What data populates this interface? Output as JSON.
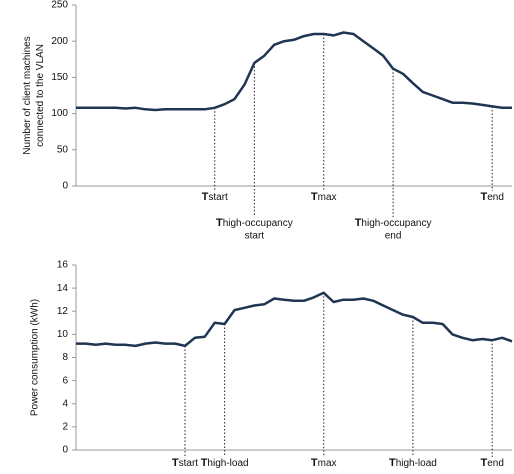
{
  "chart_data": [
    {
      "type": "line",
      "color": "#1f3552",
      "ylabel": [
        "Number of client machines",
        "connected to the VLAN"
      ],
      "ylim": [
        0,
        250
      ],
      "yticks": [
        0,
        50,
        100,
        150,
        200,
        250
      ],
      "values": [
        108,
        108,
        108,
        108,
        108,
        107,
        108,
        106,
        105,
        106,
        106,
        106,
        106,
        106,
        108,
        113,
        120,
        140,
        170,
        180,
        195,
        200,
        202,
        207,
        210,
        210,
        208,
        212,
        210,
        200,
        190,
        180,
        162,
        155,
        142,
        130,
        125,
        120,
        115,
        115,
        114,
        112,
        110,
        108,
        108
      ],
      "annotations": [
        {
          "index": 14,
          "label": [
            "Tstart"
          ]
        },
        {
          "index": 18,
          "label": [
            "Thigh-occupancy",
            "start"
          ]
        },
        {
          "index": 25,
          "label": [
            "Tmax"
          ]
        },
        {
          "index": 32,
          "label": [
            "Thigh-occupancy",
            "end"
          ]
        },
        {
          "index": 42,
          "label": [
            "Tend"
          ]
        }
      ]
    },
    {
      "type": "line",
      "color": "#1f3552",
      "ylabel": [
        "Power consumption (kWh)"
      ],
      "ylim": [
        0,
        16
      ],
      "yticks": [
        0,
        2,
        4,
        6,
        8,
        10,
        12,
        14,
        16
      ],
      "values": [
        9.2,
        9.2,
        9.1,
        9.2,
        9.1,
        9.1,
        9.0,
        9.2,
        9.3,
        9.2,
        9.2,
        9.0,
        9.7,
        9.8,
        11.0,
        10.9,
        12.1,
        12.3,
        12.5,
        12.6,
        13.1,
        13.0,
        12.9,
        12.9,
        13.2,
        13.6,
        12.8,
        13.0,
        13.0,
        13.1,
        12.9,
        12.5,
        12.1,
        11.7,
        11.5,
        11.0,
        11.0,
        10.9,
        10.0,
        9.7,
        9.5,
        9.6,
        9.5,
        9.7,
        9.4
      ],
      "annotations": [
        {
          "index": 11,
          "label": [
            "Tstart"
          ]
        },
        {
          "index": 15,
          "label": [
            "Thigh-load"
          ]
        },
        {
          "index": 25,
          "label": [
            "Tmax"
          ]
        },
        {
          "index": 34,
          "label": [
            "Thigh-load"
          ]
        },
        {
          "index": 42,
          "label": [
            "Tend"
          ]
        }
      ]
    }
  ]
}
